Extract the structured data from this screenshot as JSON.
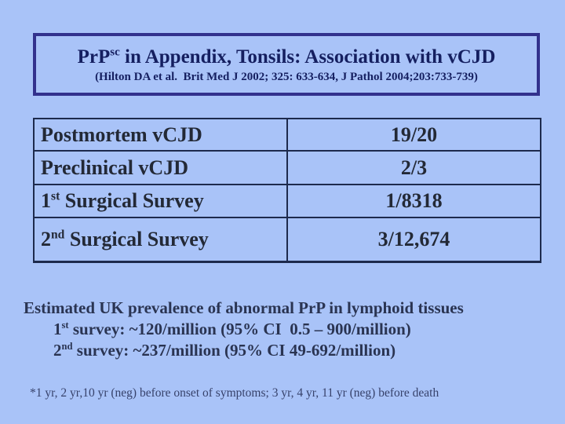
{
  "colors": {
    "page_background": "#a9c3f8",
    "title_box_border": "#32318d",
    "table_border": "#1d2a4d",
    "title_text": "#151f60",
    "table_text": "#232936",
    "summary_text": "#2a3452",
    "footnote_text": "#37426b"
  },
  "title_box": {
    "title_pre": "PrP",
    "title_sup": "sc",
    "title_post": " in Appendix, Tonsils: Association with vCJD",
    "citation": "(Hilton DA et al.  Brit Med J 2002; 325: 633-634, J Pathol 2004;203:733-739)"
  },
  "table": {
    "rows": [
      {
        "label_pre": "Postmortem vCJD",
        "label_sup": "",
        "label_post": "",
        "value": "19/20"
      },
      {
        "label_pre": "Preclinical vCJD",
        "label_sup": "",
        "label_post": "",
        "value": "2/3"
      },
      {
        "label_pre": "1",
        "label_sup": "st",
        "label_post": " Surgical Survey",
        "value": "1/8318"
      },
      {
        "label_pre": "2",
        "label_sup": "nd",
        "label_post": " Surgical Survey",
        "value": "3/12,674"
      }
    ]
  },
  "summary": {
    "line1": "Estimated UK prevalence of abnormal PrP in lymphoid tissues",
    "line2_pre": "1",
    "line2_sup": "st",
    "line2_post": " survey: ~120/million (95% CI  0.5 – 900/million)",
    "line3_pre": "2",
    "line3_sup": "nd",
    "line3_post": " survey: ~237/million (95% CI 49-692/million)"
  },
  "footnote": "*1 yr, 2 yr,10 yr (neg) before onset of symptoms; 3 yr, 4 yr, 11 yr (neg) before death"
}
